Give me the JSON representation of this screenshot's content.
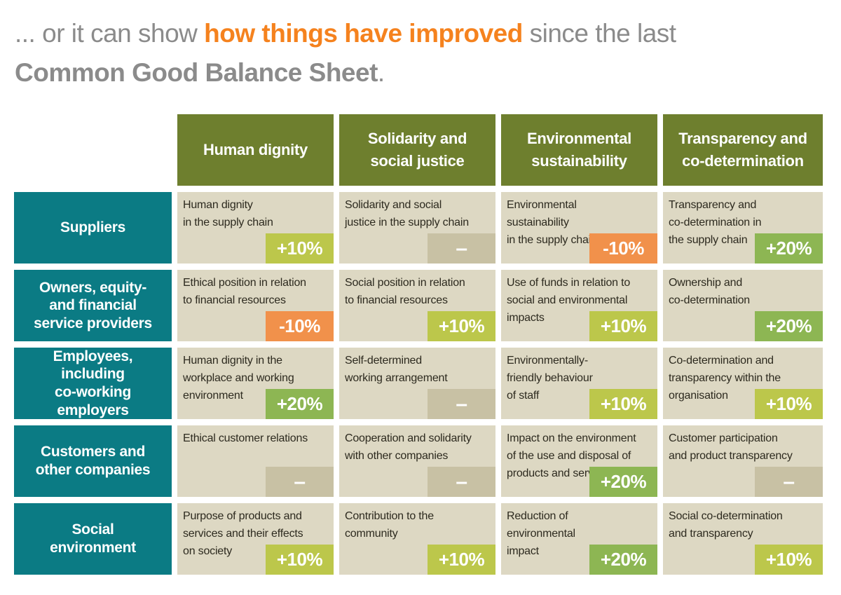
{
  "title": {
    "prefix": "... or it can show ",
    "highlight": "how things have improved",
    "suffix": " since the last",
    "line2": "Common Good Balance Sheet",
    "line2_end": "."
  },
  "colors": {
    "header_olive": "#6e7f2e",
    "row_teal": "#0b7b84",
    "cell_beige": "#ddd8c3",
    "cell_text": "#2d2a1f",
    "title_gray": "#8b8b8b",
    "title_orange": "#f5821e"
  },
  "badge_colors": {
    "plus10": "#bcc74b",
    "plus20": "#8db653",
    "minus": "#f1914b",
    "neutral": "#c8c1a4"
  },
  "columns": [
    {
      "label": "Human dignity"
    },
    {
      "label": "Solidarity and\nsocial justice"
    },
    {
      "label": "Environmental\nsustainability"
    },
    {
      "label": "Transparency and\nco-determination"
    }
  ],
  "rows": [
    {
      "label": "Suppliers",
      "cells": [
        {
          "text": "Human dignity\nin the supply chain",
          "badge": "+10%",
          "type": "plus10"
        },
        {
          "text": "Solidarity and social\njustice in the supply chain",
          "badge": "–",
          "type": "neutral"
        },
        {
          "text": "Environmental\nsustainability\nin the supply chain",
          "badge": "-10%",
          "type": "minus"
        },
        {
          "text": "Transparency and\nco-determination in\nthe supply chain",
          "badge": "+20%",
          "type": "plus20"
        }
      ]
    },
    {
      "label": "Owners, equity-\nand financial\nservice providers",
      "cells": [
        {
          "text": "Ethical position in relation\nto financial resources",
          "badge": "-10%",
          "type": "minus"
        },
        {
          "text": "Social position in relation\nto financial resources",
          "badge": "+10%",
          "type": "plus10"
        },
        {
          "text": "Use of funds in relation to\nsocial and environmental\nimpacts",
          "badge": "+10%",
          "type": "plus10"
        },
        {
          "text": "Ownership and\nco-determination",
          "badge": "+20%",
          "type": "plus20"
        }
      ]
    },
    {
      "label": "Employees,\nincluding\nco-working\nemployers",
      "cells": [
        {
          "text": "Human dignity in the\nworkplace and working\nenvironment",
          "badge": "+20%",
          "type": "plus20"
        },
        {
          "text": "Self-determined\nworking arrangement",
          "badge": "–",
          "type": "neutral"
        },
        {
          "text": "Environmentally-\nfriendly behaviour\nof staff",
          "badge": "+10%",
          "type": "plus10"
        },
        {
          "text": "Co-determination and\ntransparency within the\norganisation",
          "badge": "+10%",
          "type": "plus10"
        }
      ]
    },
    {
      "label": "Customers and\nother companies",
      "cells": [
        {
          "text": "Ethical customer relations",
          "badge": "–",
          "type": "neutral"
        },
        {
          "text": "Cooperation and solidarity\nwith other companies",
          "badge": "–",
          "type": "neutral"
        },
        {
          "text": "Impact on the environment\nof the use and disposal of\nproducts and services",
          "badge": "+20%",
          "type": "plus20"
        },
        {
          "text": "Customer participation\nand product transparency",
          "badge": "–",
          "type": "neutral"
        }
      ]
    },
    {
      "label": "Social\nenvironment",
      "cells": [
        {
          "text": "Purpose of products and\nservices and their effects\non society",
          "badge": "+10%",
          "type": "plus10"
        },
        {
          "text": "Contribution to the\ncommunity",
          "badge": "+10%",
          "type": "plus10"
        },
        {
          "text": "Reduction of\nenvironmental\nimpact",
          "badge": "+20%",
          "type": "plus20"
        },
        {
          "text": "Social co-determination\nand transparency",
          "badge": "+10%",
          "type": "plus10"
        }
      ]
    }
  ]
}
